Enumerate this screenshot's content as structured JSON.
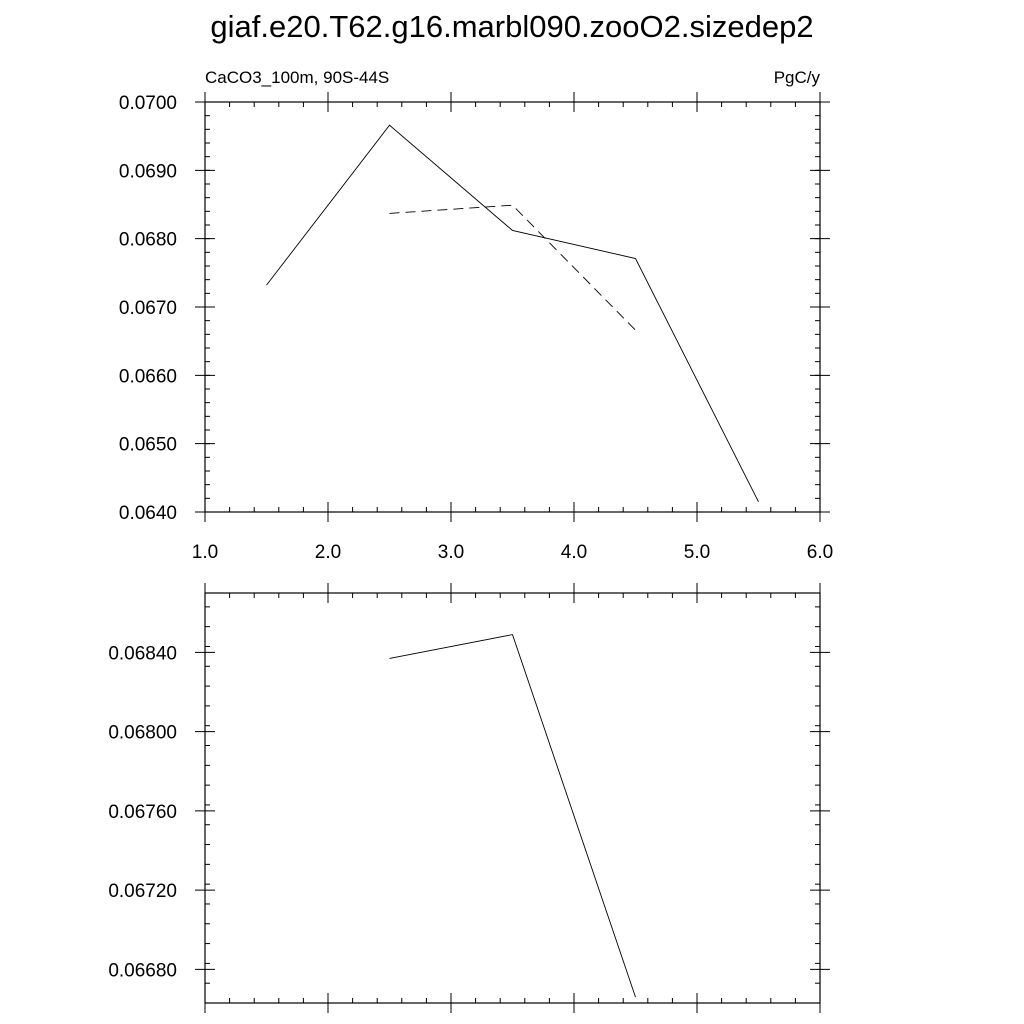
{
  "figure": {
    "title": "giaf.e20.T62.g16.marbl090.zooO2.sizedep2"
  },
  "chart_data": [
    {
      "type": "line",
      "title": "giaf.e20.T62.g16.marbl090.zooO2.sizedep2",
      "left_label": "CaCO3_100m, 90S-44S",
      "right_label": "PgC/y",
      "xlabel": "",
      "ylabel": "",
      "xlim": [
        1.0,
        6.0
      ],
      "ylim": [
        0.064,
        0.07
      ],
      "x_ticks": [
        1.0,
        2.0,
        3.0,
        4.0,
        5.0,
        6.0
      ],
      "x_tick_labels": [
        "1.0",
        "2.0",
        "3.0",
        "4.0",
        "5.0",
        "6.0"
      ],
      "x_minor_step": 0.2,
      "y_ticks": [
        0.064,
        0.065,
        0.066,
        0.067,
        0.068,
        0.069,
        0.07
      ],
      "y_tick_labels": [
        "0.0640",
        "0.0650",
        "0.0660",
        "0.0670",
        "0.0680",
        "0.0690",
        "0.0700"
      ],
      "y_minor_step": 0.0002,
      "grid": false,
      "legend": "none",
      "series": [
        {
          "style": "solid",
          "color": "#000000",
          "x": [
            1.5,
            2.5,
            3.5,
            4.5,
            5.5
          ],
          "y": [
            0.06732,
            0.06966,
            0.06812,
            0.06771,
            0.06415
          ]
        },
        {
          "style": "dashed",
          "color": "#000000",
          "x": [
            2.5,
            3.5,
            4.5
          ],
          "y": [
            0.06837,
            0.06849,
            0.06666
          ]
        }
      ]
    },
    {
      "type": "line",
      "xlabel": "",
      "ylabel": "",
      "xlim": [
        1.0,
        6.0
      ],
      "ylim": [
        0.06663,
        0.0687
      ],
      "x_ticks": [
        1.0,
        2.0,
        3.0,
        4.0,
        5.0,
        6.0
      ],
      "x_tick_labels": [],
      "x_minor_step": 0.2,
      "y_ticks": [
        0.0668,
        0.0672,
        0.0676,
        0.068,
        0.0684
      ],
      "y_tick_labels": [
        "0.06680",
        "0.06720",
        "0.06760",
        "0.06800",
        "0.06840"
      ],
      "y_minor_step": 0.0001,
      "grid": false,
      "legend": "none",
      "series": [
        {
          "style": "solid",
          "color": "#000000",
          "x": [
            2.5,
            3.5,
            4.5
          ],
          "y": [
            0.06837,
            0.06849,
            0.06666
          ]
        }
      ]
    }
  ]
}
